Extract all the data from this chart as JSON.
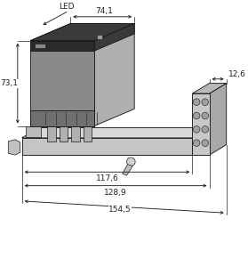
{
  "bg_color": "#ffffff",
  "line_color": "#1a1a1a",
  "dims": {
    "led_label": "LED",
    "d74_1": "74,1",
    "d73_1": "73,1",
    "d117_6": "117,6",
    "d128_9": "128,9",
    "d154_5": "154,5",
    "d12_6": "12,6"
  },
  "figsize": [
    2.79,
    3.0
  ],
  "dpi": 100,
  "module_front": "#8a8a8a",
  "module_top": "#6a6a6a",
  "module_right": "#b0b0b0",
  "module_strip_top": "#3a3a3a",
  "module_strip_front": "#2a2a2a",
  "base_top": "#d8d8d8",
  "base_front": "#c5c5c5",
  "base_right": "#b5b5b5",
  "rblock_front": "#c8c8c8",
  "rblock_top": "#b8b8b8",
  "rblock_right": "#a8a8a8",
  "dim_color": "#222222"
}
